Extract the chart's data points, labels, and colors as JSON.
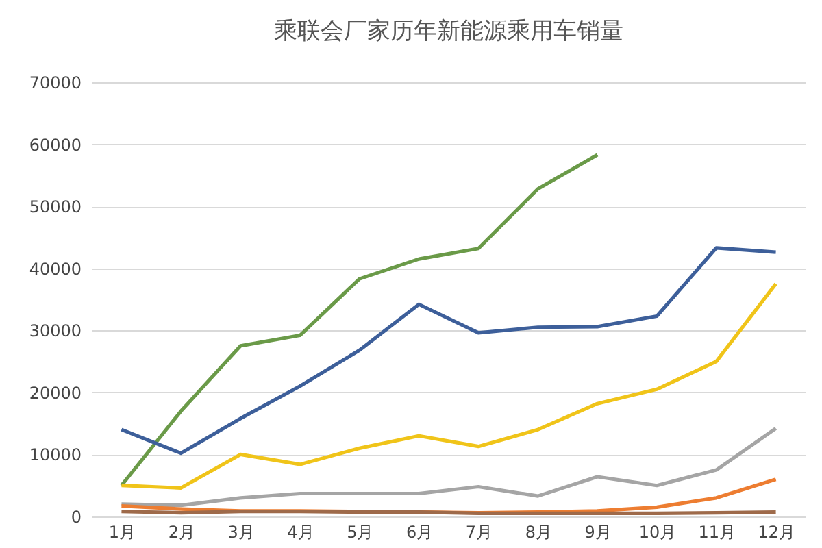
{
  "chart_data": {
    "type": "line",
    "title": "乘联会厂家历年新能源乘用车销量",
    "categories": [
      "1月",
      "2月",
      "3月",
      "4月",
      "5月",
      "6月",
      "7月",
      "8月",
      "9月",
      "10月",
      "11月",
      "12月"
    ],
    "series": [
      {
        "color": "#6a9a48",
        "values": [
          5000,
          17000,
          27500,
          29200,
          38300,
          41500,
          43200,
          52800,
          58300,
          null,
          null,
          null
        ]
      },
      {
        "color": "#3d5f9a",
        "values": [
          14000,
          10200,
          15800,
          21000,
          26800,
          34200,
          29600,
          30500,
          30600,
          32300,
          43300,
          42600
        ]
      },
      {
        "color": "#f0c419",
        "values": [
          5000,
          4600,
          10000,
          8400,
          11000,
          13000,
          11300,
          14000,
          18200,
          20500,
          25000,
          37500
        ]
      },
      {
        "color": "#a5a5a5",
        "values": [
          2000,
          1800,
          3000,
          3700,
          3700,
          3700,
          4800,
          3300,
          6400,
          5000,
          7500,
          14200
        ]
      },
      {
        "color": "#ed7d31",
        "values": [
          1700,
          1200,
          900,
          900,
          800,
          700,
          600,
          700,
          900,
          1500,
          3000,
          6000
        ]
      },
      {
        "color": "#9e6a4a",
        "values": [
          800,
          600,
          800,
          800,
          700,
          700,
          500,
          500,
          500,
          500,
          600,
          700
        ]
      }
    ],
    "ylim": [
      0,
      70000
    ],
    "yticks": [
      0,
      10000,
      20000,
      30000,
      40000,
      50000,
      60000,
      70000
    ],
    "grid": "y"
  }
}
